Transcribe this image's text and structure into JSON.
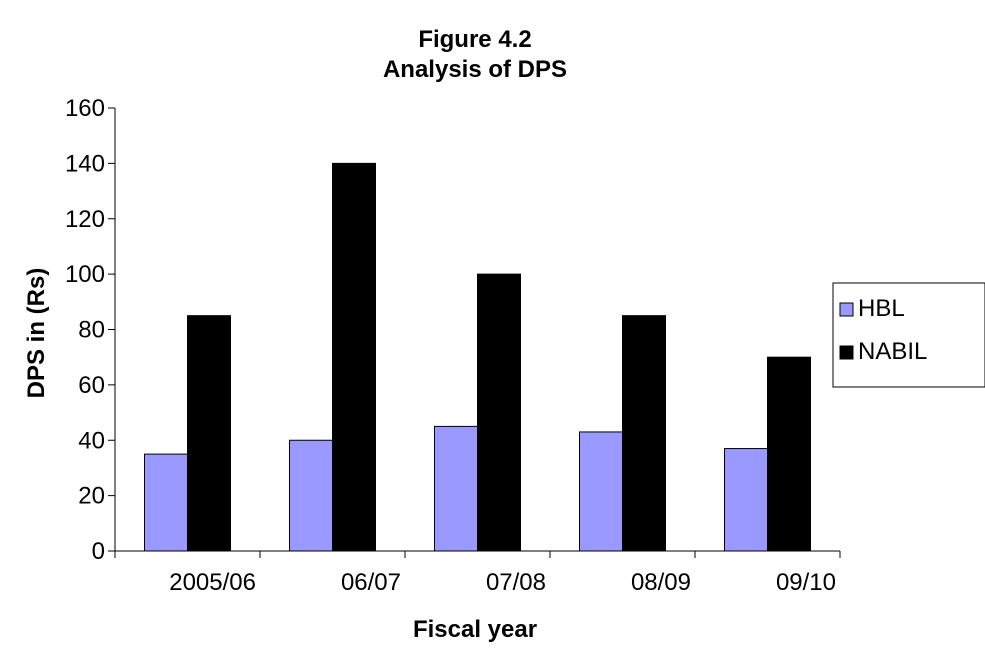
{
  "chart_data": {
    "type": "bar",
    "title": "Figure 4.2",
    "subtitle": "Analysis of DPS",
    "xlabel": "Fiscal year",
    "ylabel": "DPS in (Rs)",
    "categories": [
      "2005/06",
      "06/07",
      "07/08",
      "08/09",
      "09/10"
    ],
    "series": [
      {
        "name": "HBL",
        "values": [
          35,
          40,
          45,
          43,
          37
        ],
        "color": "#9999ff"
      },
      {
        "name": "NABIL",
        "values": [
          85,
          140,
          100,
          85,
          70
        ],
        "color": "#000000"
      }
    ],
    "ylim": [
      0,
      160
    ],
    "yticks": [
      0,
      20,
      40,
      60,
      80,
      100,
      120,
      140,
      160
    ],
    "grid": false,
    "legend": "right"
  }
}
